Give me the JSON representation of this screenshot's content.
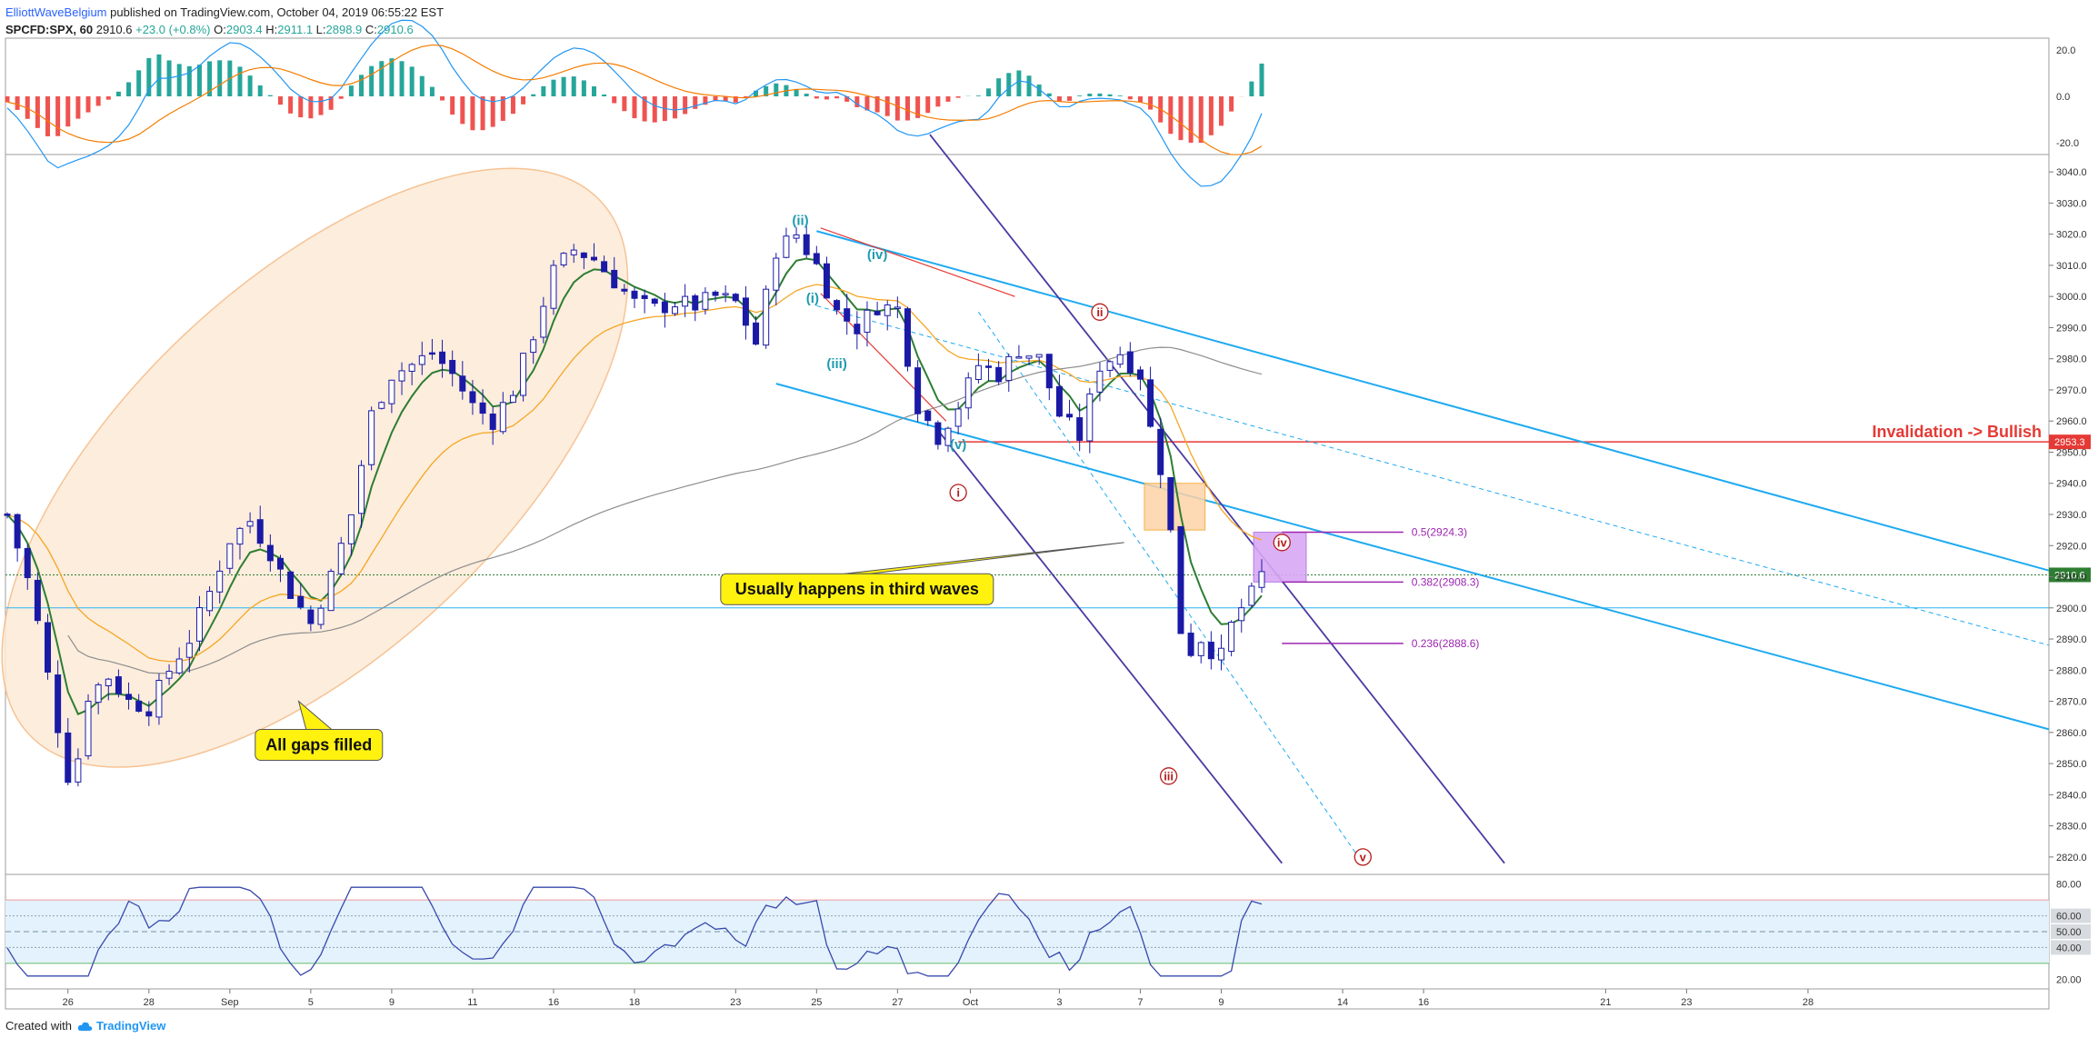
{
  "header": {
    "author": "ElliottWaveBelgium",
    "published": "published on TradingView.com, October 04, 2019 06:55:22 EST",
    "symbol": "SPCFD:SPX, 60",
    "last": "2910.6",
    "change": "+23.0 (+0.8%)",
    "o_label": "O:",
    "o_val": "2903.4",
    "h_label": "H:",
    "h_val": "2911.1",
    "l_label": "L:",
    "l_val": "2898.9",
    "c_label": "C:",
    "c_val": "2910.6"
  },
  "footer": {
    "created": "Created with",
    "brand": "TradingView"
  },
  "colors": {
    "up_candle": "#ffffff",
    "down_candle": "#1a1aa6",
    "candle_outline": "#1a1aa6",
    "ema_fast": "#2e7d32",
    "ema_slow": "#f5a623",
    "sma_long": "#8d8d8d",
    "channel_blue": "#1eaaf1",
    "channel_purple": "#4a3aa0",
    "fib": "#9c27b0",
    "invalidation": "#e53935",
    "rsi": "#3949ab"
  },
  "annotations": {
    "all_gaps": "All gaps filled",
    "third_waves": "Usually happens in third waves",
    "invalidation": "Invalidation -> Bullish",
    "invalidation_level": "2953.3",
    "current_price": "2910.6",
    "fib": [
      {
        "label": "0.5(2924.3)",
        "price": 2924.3
      },
      {
        "label": "0.382(2908.3)",
        "price": 2908.3
      },
      {
        "label": "0.236(2888.6)",
        "price": 2888.6
      }
    ],
    "waves_minor": [
      {
        "label": "(ii)",
        "t": 19.6,
        "p": 3023
      },
      {
        "label": "(i)",
        "t": 19.9,
        "p": 2998
      },
      {
        "label": "(iv)",
        "t": 21.5,
        "p": 3012
      },
      {
        "label": "(iii)",
        "t": 20.5,
        "p": 2977
      },
      {
        "label": "(v)",
        "t": 23.5,
        "p": 2951
      }
    ],
    "waves_major": [
      {
        "label": "i",
        "t": 23.5,
        "p": 2937
      },
      {
        "label": "ii",
        "t": 27.0,
        "p": 2995
      },
      {
        "label": "iii",
        "t": 28.7,
        "p": 2846
      },
      {
        "label": "iv",
        "t": 31.5,
        "p": 2921
      },
      {
        "label": "v",
        "t": 33.5,
        "p": 2820
      }
    ]
  },
  "chart_data": [
    {
      "type": "candlestick",
      "title": "SPCFD:SPX, 60",
      "ylim": [
        2815,
        3045
      ],
      "y_ticks": [
        "3040.0",
        "3030.0",
        "3020.0",
        "3010.0",
        "3000.0",
        "2990.0",
        "2980.0",
        "2970.0",
        "2960.0",
        "2950.0",
        "2940.0",
        "2930.0",
        "2920.0",
        "2910.0",
        "2900.0",
        "2890.0",
        "2880.0",
        "2870.0",
        "2860.0",
        "2850.0",
        "2840.0",
        "2830.0",
        "2820.0"
      ],
      "x_ticks": [
        "26",
        "28",
        "Sep",
        "5",
        "9",
        "11",
        "16",
        "18",
        "23",
        "25",
        "27",
        "Oct",
        "3",
        "7",
        "9",
        "14",
        "16",
        "21",
        "23",
        "28"
      ],
      "ohlc_path": [
        [
          0,
          2930
        ],
        [
          0.6,
          2905
        ],
        [
          1.2,
          2865
        ],
        [
          1.6,
          2840
        ],
        [
          2.0,
          2872
        ],
        [
          2.5,
          2878
        ],
        [
          3.0,
          2870
        ],
        [
          3.5,
          2868
        ],
        [
          4.0,
          2880
        ],
        [
          4.5,
          2890
        ],
        [
          5.0,
          2905
        ],
        [
          5.5,
          2922
        ],
        [
          6.0,
          2928
        ],
        [
          6.5,
          2918
        ],
        [
          7.0,
          2905
        ],
        [
          7.5,
          2895
        ],
        [
          8.0,
          2910
        ],
        [
          8.5,
          2930
        ],
        [
          9.0,
          2962
        ],
        [
          9.5,
          2975
        ],
        [
          10.0,
          2978
        ],
        [
          10.5,
          2982
        ],
        [
          11.0,
          2975
        ],
        [
          11.5,
          2965
        ],
        [
          12.0,
          2960
        ],
        [
          12.5,
          2970
        ],
        [
          13.0,
          2988
        ],
        [
          13.5,
          3008
        ],
        [
          14.0,
          3015
        ],
        [
          14.5,
          3012
        ],
        [
          15.0,
          3005
        ],
        [
          15.5,
          2998
        ],
        [
          16.0,
          2996
        ],
        [
          16.5,
          2998
        ],
        [
          17.0,
          2997
        ],
        [
          17.5,
          3000
        ],
        [
          18.0,
          2998
        ],
        [
          18.5,
          2985
        ],
        [
          19.0,
          3015
        ],
        [
          19.5,
          3020
        ],
        [
          20.0,
          3010
        ],
        [
          20.5,
          2995
        ],
        [
          21.0,
          2990
        ],
        [
          21.5,
          2997
        ],
        [
          22.0,
          2996
        ],
        [
          22.5,
          2965
        ],
        [
          23.0,
          2955
        ],
        [
          23.5,
          2965
        ],
        [
          24.0,
          2978
        ],
        [
          24.5,
          2975
        ],
        [
          25.0,
          2983
        ],
        [
          25.5,
          2980
        ],
        [
          26.0,
          2962
        ],
        [
          26.5,
          2955
        ],
        [
          27.0,
          2978
        ],
        [
          27.5,
          2982
        ],
        [
          28.0,
          2975
        ],
        [
          28.2,
          2960
        ],
        [
          28.5,
          2945
        ],
        [
          28.8,
          2920
        ],
        [
          29.0,
          2893
        ],
        [
          29.3,
          2885
        ],
        [
          29.6,
          2893
        ],
        [
          29.9,
          2880
        ],
        [
          30.2,
          2893
        ],
        [
          30.5,
          2900
        ],
        [
          30.8,
          2905
        ],
        [
          31.0,
          2910.6
        ]
      ]
    },
    {
      "type": "histogram",
      "title": "MACD",
      "ylim": [
        -25,
        25
      ],
      "y_ticks": [
        "20.0",
        "0.0",
        "-20.0"
      ]
    },
    {
      "type": "line",
      "title": "RSI",
      "ylim": [
        15,
        85
      ],
      "y_ticks": [
        "80.00",
        "60.00",
        "50.00",
        "40.00",
        "20.00"
      ]
    }
  ]
}
